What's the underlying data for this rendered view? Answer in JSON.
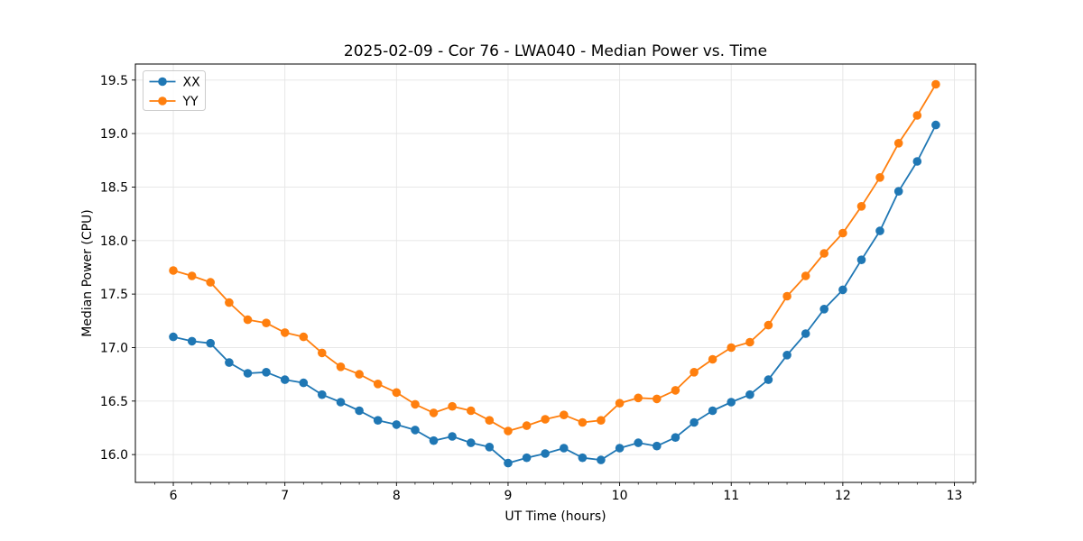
{
  "figure": {
    "background_color": "#ffffff",
    "text_color": "#000000"
  },
  "chart_data": {
    "type": "line",
    "title": "2025-02-09 - Cor 76 - LWA040 - Median Power vs. Time",
    "xlabel": "UT Time (hours)",
    "ylabel": "Median Power (CPU)",
    "xlim": [
      5.66,
      13.19
    ],
    "ylim": [
      15.74,
      19.65
    ],
    "x_ticks": [
      6,
      7,
      8,
      9,
      10,
      11,
      12,
      13
    ],
    "x_tick_labels": [
      "6",
      "7",
      "8",
      "9",
      "10",
      "11",
      "12",
      "13"
    ],
    "y_ticks": [
      16.0,
      16.5,
      17.0,
      17.5,
      18.0,
      18.5,
      19.0,
      19.5
    ],
    "y_tick_labels": [
      "16.0",
      "16.5",
      "17.0",
      "17.5",
      "18.0",
      "18.5",
      "19.0",
      "19.5"
    ],
    "x_minor_tick_interval": 0.1666667,
    "grid": true,
    "grid_color": "#e5e5e5",
    "axis_color": "#000000",
    "legend_position": "upper left",
    "marker": "circle",
    "x": [
      6.0,
      6.167,
      6.333,
      6.5,
      6.667,
      6.833,
      7.0,
      7.167,
      7.333,
      7.5,
      7.667,
      7.833,
      8.0,
      8.167,
      8.333,
      8.5,
      8.667,
      8.833,
      9.0,
      9.167,
      9.333,
      9.5,
      9.667,
      9.833,
      10.0,
      10.167,
      10.333,
      10.5,
      10.667,
      10.833,
      11.0,
      11.167,
      11.333,
      11.5,
      11.667,
      11.833,
      12.0,
      12.167,
      12.333,
      12.5,
      12.667,
      12.833
    ],
    "series": [
      {
        "name": "XX",
        "color": "#1f77b4",
        "values": [
          17.1,
          17.06,
          17.04,
          16.86,
          16.76,
          16.77,
          16.7,
          16.67,
          16.56,
          16.49,
          16.41,
          16.32,
          16.28,
          16.23,
          16.13,
          16.17,
          16.11,
          16.07,
          15.92,
          15.97,
          16.01,
          16.06,
          15.97,
          15.95,
          16.06,
          16.11,
          16.08,
          16.16,
          16.3,
          16.41,
          16.49,
          16.56,
          16.7,
          16.93,
          17.13,
          17.36,
          17.54,
          17.82,
          18.09,
          18.46,
          18.74,
          19.08
        ]
      },
      {
        "name": "YY",
        "color": "#ff7f0e",
        "values": [
          17.72,
          17.67,
          17.61,
          17.42,
          17.26,
          17.23,
          17.14,
          17.1,
          16.95,
          16.82,
          16.75,
          16.66,
          16.58,
          16.47,
          16.39,
          16.45,
          16.41,
          16.32,
          16.22,
          16.27,
          16.33,
          16.37,
          16.3,
          16.32,
          16.48,
          16.53,
          16.52,
          16.6,
          16.77,
          16.89,
          17.0,
          17.05,
          17.21,
          17.48,
          17.67,
          17.88,
          18.07,
          18.32,
          18.59,
          18.91,
          19.17,
          19.46
        ]
      }
    ]
  }
}
